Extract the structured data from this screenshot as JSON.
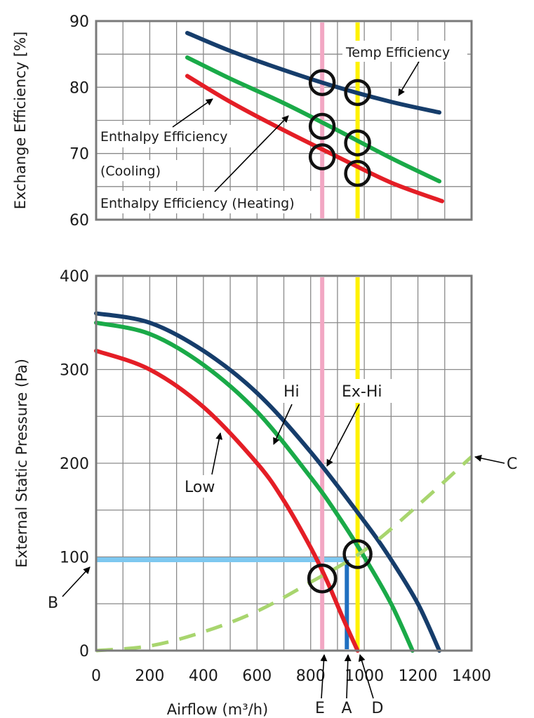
{
  "chart_data": [
    {
      "type": "line",
      "ylabel": "Exchange Efficiency [%]",
      "xlim": [
        0,
        1400
      ],
      "ylim": [
        60,
        90
      ],
      "yticks": [
        "60",
        "70",
        "80",
        "90"
      ],
      "grid": true,
      "series": [
        {
          "key": "temp",
          "color": "#163d6b",
          "x": [
            340,
            500,
            700,
            900,
            1100,
            1280
          ],
          "y": [
            88.2,
            85.5,
            82.6,
            80.0,
            77.8,
            76.2
          ]
        },
        {
          "key": "cool",
          "color": "#1aaa48",
          "x": [
            340,
            500,
            700,
            900,
            1100,
            1280
          ],
          "y": [
            84.5,
            81.3,
            77.6,
            73.5,
            69.3,
            65.8
          ]
        },
        {
          "key": "heat",
          "color": "#e41e26",
          "x": [
            340,
            500,
            700,
            900,
            1100,
            1290
          ],
          "y": [
            81.7,
            77.8,
            73.5,
            69.5,
            65.6,
            62.8
          ]
        }
      ],
      "vlines": [
        {
          "x": 843,
          "color": "#f2a7c3"
        },
        {
          "x": 975,
          "color": "#fff200"
        }
      ],
      "markers": [
        {
          "x": 843,
          "y": 80.7
        },
        {
          "x": 843,
          "y": 74.1
        },
        {
          "x": 843,
          "y": 69.5
        },
        {
          "x": 975,
          "y": 79.2
        },
        {
          "x": 975,
          "y": 71.6
        },
        {
          "x": 975,
          "y": 67.0
        }
      ],
      "annotations": [
        {
          "key": "temp",
          "text": "Temp Efficiency"
        },
        {
          "key": "cool1",
          "text": "Enthalpy Efficiency"
        },
        {
          "key": "cool2",
          "text": "(Cooling)"
        },
        {
          "key": "heat",
          "text": "Enthalpy Efficiency (Heating)"
        }
      ]
    },
    {
      "type": "line",
      "xlabel": "Airflow (m³/h)",
      "ylabel": "External Static Pressure (Pa)",
      "xlim": [
        0,
        1400
      ],
      "ylim": [
        0,
        400
      ],
      "xticks": [
        "0",
        "200",
        "400",
        "600",
        "800",
        "1000",
        "1200",
        "1400"
      ],
      "yticks": [
        "0",
        "100",
        "200",
        "300",
        "400"
      ],
      "grid": true,
      "series": [
        {
          "key": "exhi",
          "name": "Ex-Hi",
          "color": "#163d6b",
          "x": [
            0,
            200,
            400,
            600,
            800,
            1000,
            1100,
            1200,
            1280
          ],
          "y": [
            360,
            350,
            320,
            275,
            212,
            138,
            97,
            50,
            0
          ]
        },
        {
          "key": "hi",
          "name": "Hi",
          "color": "#1aaa48",
          "x": [
            0,
            200,
            400,
            600,
            800,
            900,
            1000,
            1100,
            1180
          ],
          "y": [
            350,
            338,
            305,
            255,
            185,
            145,
            100,
            50,
            0
          ]
        },
        {
          "key": "low",
          "name": "Low",
          "color": "#e41e26",
          "x": [
            0,
            200,
            400,
            600,
            700,
            800,
            860,
            920,
            975
          ],
          "y": [
            320,
            300,
            260,
            200,
            160,
            110,
            75,
            35,
            0
          ]
        },
        {
          "key": "duct",
          "color": "#a8d56e",
          "dashed": true,
          "x": [
            0,
            200,
            400,
            600,
            800,
            1000,
            1200,
            1400
          ],
          "y": [
            0,
            5,
            20,
            42,
            73,
            107,
            155,
            207
          ]
        }
      ],
      "hline": {
        "y": 97,
        "x_end": 935,
        "color": "#7ec8f0"
      },
      "drop": {
        "x": 935,
        "y_top": 97,
        "color": "#1f6fc0"
      },
      "vlines": [
        {
          "x": 843,
          "color": "#f2a7c3"
        },
        {
          "x": 975,
          "color": "#fff200"
        }
      ],
      "markers": [
        {
          "x": 843,
          "y": 77
        },
        {
          "x": 975,
          "y": 103
        }
      ],
      "annotations": [
        {
          "key": "low",
          "text": "Low"
        },
        {
          "key": "hi",
          "text": "Hi"
        },
        {
          "key": "exhi",
          "text": "Ex-Hi"
        },
        {
          "key": "B",
          "text": "B"
        },
        {
          "key": "C",
          "text": "C"
        },
        {
          "key": "E",
          "text": "E"
        },
        {
          "key": "A",
          "text": "A"
        },
        {
          "key": "D",
          "text": "D"
        }
      ]
    }
  ]
}
